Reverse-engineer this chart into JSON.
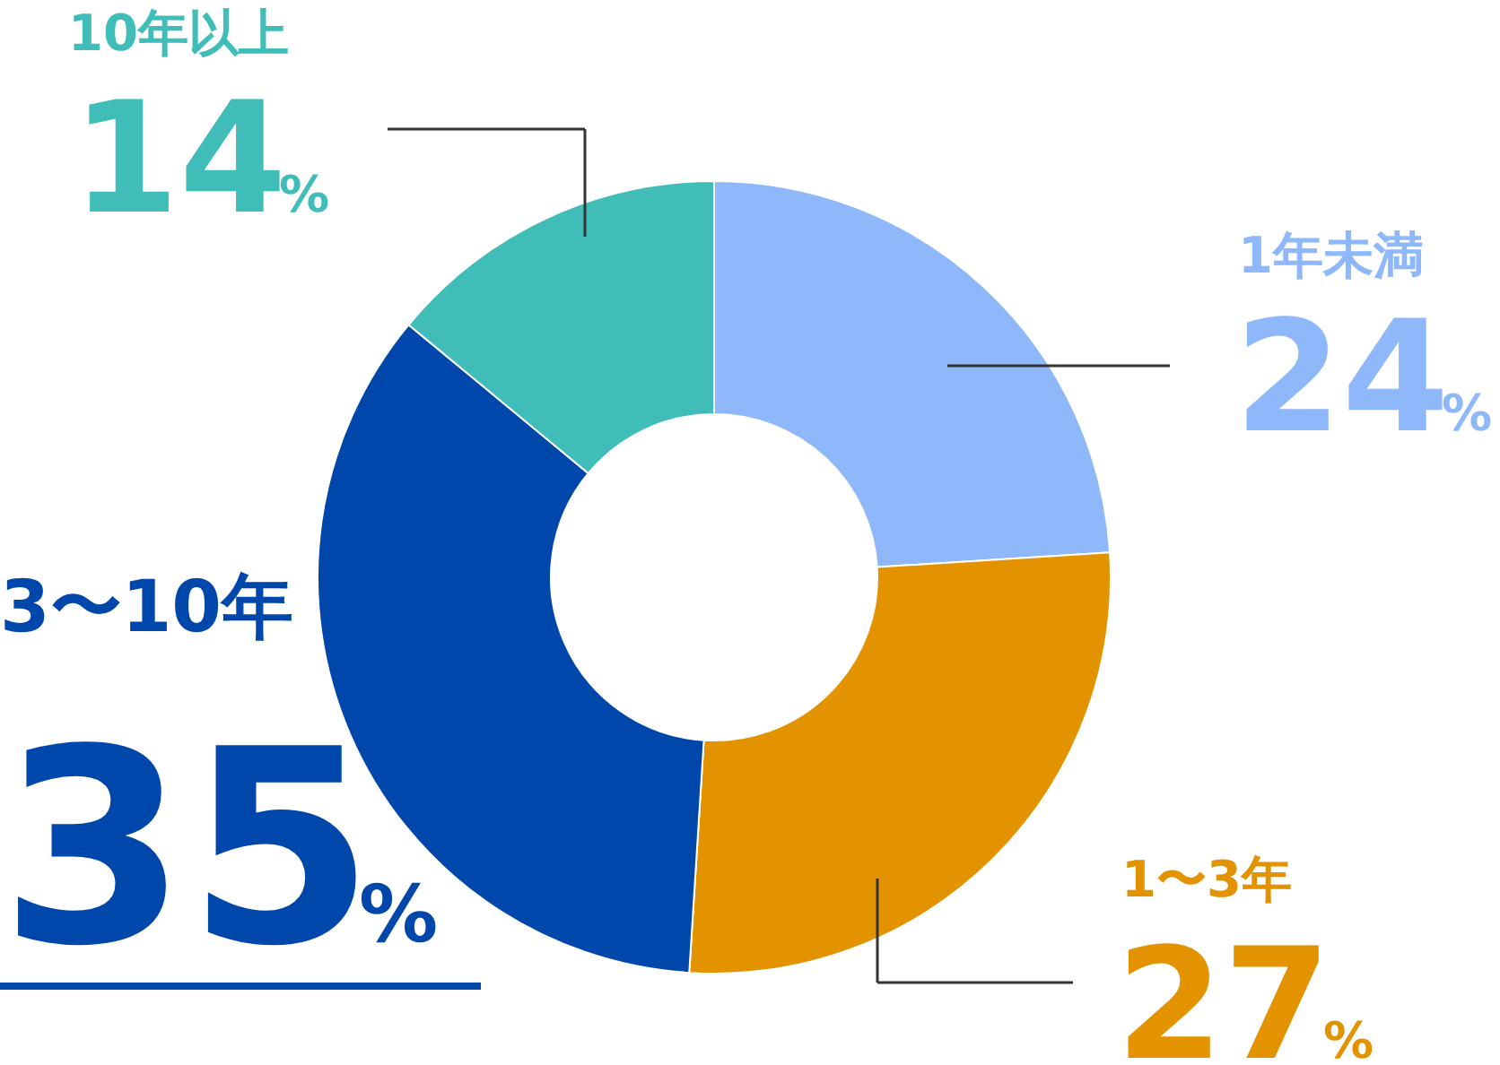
{
  "chart_data": {
    "type": "donut",
    "categories": [
      "1年未満",
      "1〜3年",
      "3〜10年",
      "10年以上"
    ],
    "values": [
      24,
      27,
      35,
      14
    ],
    "colors": [
      "#8fb8fb",
      "#e39300",
      "#0047ab",
      "#40bdb8"
    ],
    "value_labels": [
      "24%",
      "27%",
      "35%",
      "14%"
    ]
  }
}
